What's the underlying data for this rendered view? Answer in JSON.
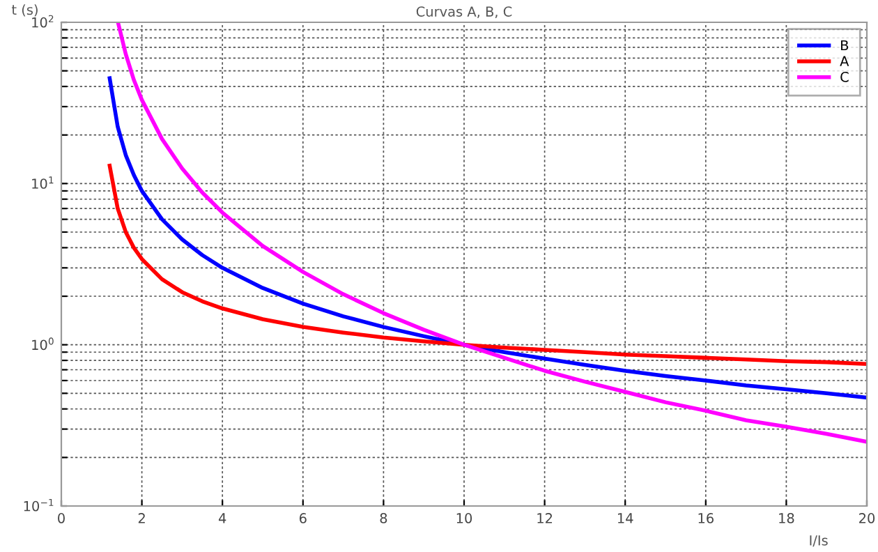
{
  "chart_data": {
    "type": "line",
    "title": "Curvas A, B, C",
    "xlabel": "I/Is",
    "ylabel": "t (s)",
    "x": [
      1.2,
      1.4,
      1.6,
      1.8,
      2,
      2.5,
      3,
      3.5,
      4,
      5,
      6,
      7,
      8,
      9,
      10,
      11,
      12,
      13,
      14,
      15,
      16,
      17,
      18,
      19,
      20
    ],
    "series": [
      {
        "name": "B",
        "color": "#0000ff",
        "values": [
          45,
          22.5,
          15,
          11.3,
          9,
          6,
          4.5,
          3.6,
          3,
          2.25,
          1.8,
          1.5,
          1.29,
          1.13,
          1,
          0.9,
          0.82,
          0.75,
          0.69,
          0.64,
          0.6,
          0.56,
          0.53,
          0.5,
          0.47
        ]
      },
      {
        "name": "A",
        "color": "#ff0000",
        "values": [
          12.9,
          7,
          5,
          4,
          3.4,
          2.55,
          2.12,
          1.86,
          1.68,
          1.44,
          1.29,
          1.19,
          1.11,
          1.05,
          1,
          0.96,
          0.93,
          0.9,
          0.87,
          0.85,
          0.83,
          0.81,
          0.79,
          0.78,
          0.76
        ]
      },
      {
        "name": "C",
        "color": "#ff00ff",
        "x": [
          1.42,
          1.6,
          1.8,
          2,
          2.5,
          3,
          3.5,
          4,
          5,
          6,
          7,
          8,
          9,
          10,
          11,
          12,
          13,
          14,
          15,
          16,
          17,
          18,
          19,
          20
        ],
        "values": [
          97,
          63.5,
          44,
          33,
          18.9,
          12.4,
          8.8,
          6.6,
          4.1,
          2.83,
          2.06,
          1.57,
          1.24,
          1,
          0.83,
          0.69,
          0.59,
          0.51,
          0.44,
          0.39,
          0.34,
          0.31,
          0.28,
          0.25
        ]
      }
    ],
    "log": "y",
    "xlim": [
      0,
      20
    ],
    "ylim": [
      0.1,
      100
    ],
    "xticks": [
      0,
      2,
      4,
      6,
      8,
      10,
      12,
      14,
      16,
      18,
      20
    ],
    "yticks": [
      {
        "value": 0.1,
        "label": "10$^{−1}$"
      },
      {
        "value": 0.2,
        "label": null
      },
      {
        "value": 0.3,
        "label": null
      },
      {
        "value": 0.4,
        "label": null
      },
      {
        "value": 0.5,
        "label": null
      },
      {
        "value": 0.6,
        "label": null
      },
      {
        "value": 0.7,
        "label": null
      },
      {
        "value": 0.8,
        "label": null
      },
      {
        "value": 0.9,
        "label": null
      },
      {
        "value": 1,
        "label": "10$^{0}$"
      },
      {
        "value": 2,
        "label": null
      },
      {
        "value": 3,
        "label": null
      },
      {
        "value": 4,
        "label": null
      },
      {
        "value": 5,
        "label": null
      },
      {
        "value": 6,
        "label": null
      },
      {
        "value": 7,
        "label": null
      },
      {
        "value": 8,
        "label": null
      },
      {
        "value": 9,
        "label": null
      },
      {
        "value": 10,
        "label": "10$^{1}$"
      },
      {
        "value": 20,
        "label": null
      },
      {
        "value": 30,
        "label": null
      },
      {
        "value": 40,
        "label": null
      },
      {
        "value": 50,
        "label": null
      },
      {
        "value": 60,
        "label": null
      },
      {
        "value": 70,
        "label": null
      },
      {
        "value": 80,
        "label": null
      },
      {
        "value": 90,
        "label": null
      },
      {
        "value": 100,
        "label": "10$^{2}$"
      }
    ],
    "grid": true,
    "legend": "top right",
    "line_style": "solid",
    "marker": "none"
  }
}
